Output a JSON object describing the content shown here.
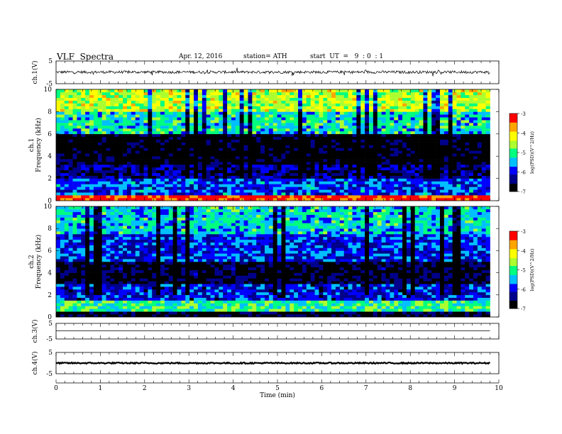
{
  "header": {
    "title": "VLF  Spectra",
    "date": "Apr. 12, 2016",
    "station": "station= ATH",
    "start": "start  UT  =   9  : 0  : 1"
  },
  "chart_data": [
    {
      "type": "line",
      "name": "ch1-waveform",
      "ylabel": "ch.1(V)",
      "ylim": [
        -5,
        5
      ],
      "yticks": [
        "5",
        "-5"
      ],
      "xlim": [
        0,
        10
      ],
      "data_end_min": 9.8,
      "description_values": {
        "baseline": 0.1,
        "amplitude": 0.6
      }
    },
    {
      "type": "heatmap",
      "name": "ch1-spectrogram",
      "ylabel": "ch.1\nFrequency  (kHz)",
      "ylim": [
        0,
        10
      ],
      "yticks": [
        "0",
        "2",
        "4",
        "6",
        "8",
        "10"
      ],
      "xlim": [
        0,
        10
      ],
      "data_end_min": 9.8,
      "colorbar": {
        "label": "log(PSD)(V^2/Hz)",
        "range": [
          -7,
          -3
        ],
        "ticks": [
          "-3",
          "-4",
          "-5",
          "-6",
          "-7"
        ]
      },
      "bands": [
        {
          "fmin": 0.0,
          "fmax": 0.4,
          "level": -3.2
        },
        {
          "fmin": 0.4,
          "fmax": 2.0,
          "level": -5.8
        },
        {
          "fmin": 2.0,
          "fmax": 3.2,
          "level": -6.4
        },
        {
          "fmin": 3.2,
          "fmax": 6.0,
          "level": -6.9
        },
        {
          "fmin": 6.0,
          "fmax": 8.0,
          "level": -5.2
        },
        {
          "fmin": 8.0,
          "fmax": 10.0,
          "level": -4.4
        }
      ]
    },
    {
      "type": "heatmap",
      "name": "ch2-spectrogram",
      "ylabel": "ch.2\nFrequency  (kHz)",
      "ylim": [
        0,
        10
      ],
      "yticks": [
        "0",
        "2",
        "4",
        "6",
        "8",
        "10"
      ],
      "xlim": [
        0,
        10
      ],
      "data_end_min": 9.8,
      "colorbar": {
        "label": "log(PSD)(V^2/Hz)",
        "range": [
          -7,
          -3
        ],
        "ticks": [
          "-3",
          "-4",
          "-5",
          "-6",
          "-7"
        ]
      },
      "bands": [
        {
          "fmin": 0.0,
          "fmax": 0.4,
          "level": -6.8
        },
        {
          "fmin": 0.4,
          "fmax": 1.5,
          "level": -5.0
        },
        {
          "fmin": 1.5,
          "fmax": 3.0,
          "level": -6.0
        },
        {
          "fmin": 3.0,
          "fmax": 5.0,
          "level": -6.7
        },
        {
          "fmin": 5.0,
          "fmax": 7.5,
          "level": -5.9
        },
        {
          "fmin": 7.5,
          "fmax": 10.0,
          "level": -5.3
        }
      ]
    },
    {
      "type": "line",
      "name": "ch3-waveform",
      "ylabel": "ch.3(V)",
      "ylim": [
        -5,
        5
      ],
      "yticks": [
        "5",
        "-5"
      ],
      "xlim": [
        0,
        10
      ],
      "data_end_min": 9.8,
      "description_values": {
        "baseline": 0.2,
        "amplitude": 0.0
      }
    },
    {
      "type": "line",
      "name": "ch4-waveform",
      "ylabel": "ch.4(V)",
      "ylim": [
        -5,
        5
      ],
      "yticks": [
        "5",
        "-5"
      ],
      "xlim": [
        0,
        10
      ],
      "data_end_min": 9.8,
      "description_values": {
        "baseline": 0.0,
        "amplitude": 0.3
      }
    }
  ],
  "xaxis": {
    "label": "Time  (min)",
    "ticks": [
      "0",
      "1",
      "2",
      "3",
      "4",
      "5",
      "6",
      "7",
      "8",
      "9",
      "10"
    ]
  },
  "colormap": [
    "#000000",
    "#00008b",
    "#0000ff",
    "#00bfff",
    "#00ff7f",
    "#adff2f",
    "#ffff00",
    "#ffa500",
    "#ff0000",
    "#ffffff"
  ]
}
